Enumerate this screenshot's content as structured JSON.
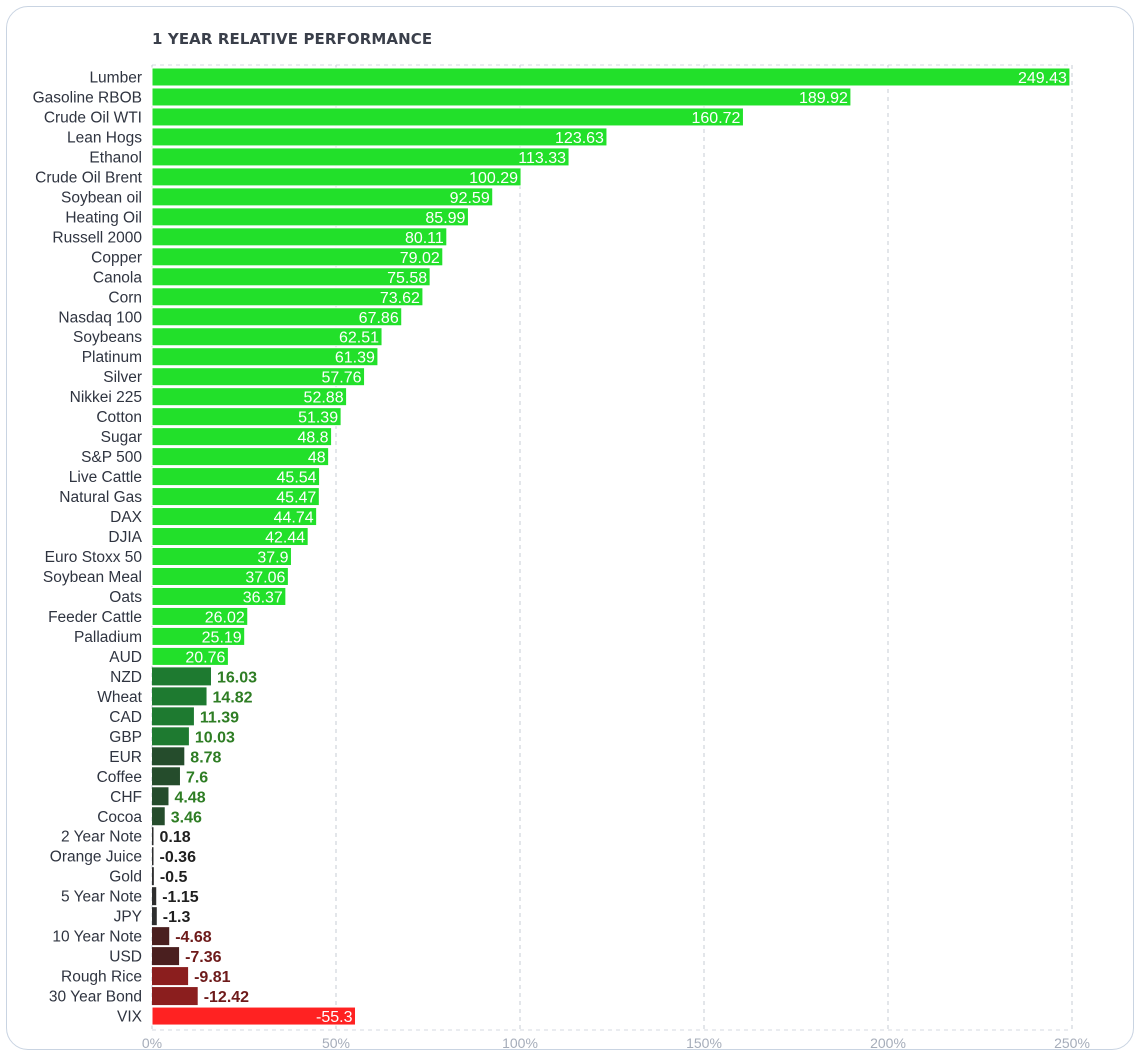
{
  "chart_data": {
    "type": "bar",
    "orientation": "horizontal",
    "title": "1 YEAR RELATIVE PERFORMANCE",
    "xlabel": "",
    "ylabel": "",
    "xlim": [
      0,
      250
    ],
    "x_ticks": [
      0,
      50,
      100,
      150,
      200,
      250
    ],
    "x_tick_labels": [
      "0%",
      "50%",
      "100%",
      "150%",
      "200%",
      "250%"
    ],
    "grid": "vertical dashed",
    "colors": {
      "bright_green": "#22e02a",
      "bright_green_border": "#ffffff",
      "dark_green_strong": "#1e7a30",
      "dark_green_weak": "#254c2c",
      "near_zero": "#2e2e2e",
      "dark_red_weak": "#4a1f1f",
      "dark_red_strong": "#8b1e1e",
      "bright_red": "#ff2222",
      "label_green": "#2e7d24",
      "label_dark": "#1f1f1f",
      "label_red": "#6e1a1a"
    },
    "categories": [
      "Lumber",
      "Gasoline RBOB",
      "Crude Oil WTI",
      "Lean Hogs",
      "Ethanol",
      "Crude Oil Brent",
      "Soybean oil",
      "Heating Oil",
      "Russell 2000",
      "Copper",
      "Canola",
      "Corn",
      "Nasdaq 100",
      "Soybeans",
      "Platinum",
      "Silver",
      "Nikkei 225",
      "Cotton",
      "Sugar",
      "S&P 500",
      "Live Cattle",
      "Natural Gas",
      "DAX",
      "DJIA",
      "Euro Stoxx 50",
      "Soybean Meal",
      "Oats",
      "Feeder Cattle",
      "Palladium",
      "AUD",
      "NZD",
      "Wheat",
      "CAD",
      "GBP",
      "EUR",
      "Coffee",
      "CHF",
      "Cocoa",
      "2 Year Note",
      "Orange Juice",
      "Gold",
      "5 Year Note",
      "JPY",
      "10 Year Note",
      "USD",
      "Rough Rice",
      "30 Year Bond",
      "VIX"
    ],
    "values": [
      249.43,
      189.92,
      160.72,
      123.63,
      113.33,
      100.29,
      92.59,
      85.99,
      80.11,
      79.02,
      75.58,
      73.62,
      67.86,
      62.51,
      61.39,
      57.76,
      52.88,
      51.39,
      48.8,
      48,
      45.54,
      45.47,
      44.74,
      42.44,
      37.9,
      37.06,
      36.37,
      26.02,
      25.19,
      20.76,
      16.03,
      14.82,
      11.39,
      10.03,
      8.78,
      7.6,
      4.48,
      3.46,
      0.18,
      -0.36,
      -0.5,
      -1.15,
      -1.3,
      -4.68,
      -7.36,
      -9.81,
      -12.42,
      -55.3
    ],
    "value_labels": [
      "249.43",
      "189.92",
      "160.72",
      "123.63",
      "113.33",
      "100.29",
      "92.59",
      "85.99",
      "80.11",
      "79.02",
      "75.58",
      "73.62",
      "67.86",
      "62.51",
      "61.39",
      "57.76",
      "52.88",
      "51.39",
      "48.8",
      "48",
      "45.54",
      "45.47",
      "44.74",
      "42.44",
      "37.9",
      "37.06",
      "36.37",
      "26.02",
      "25.19",
      "20.76",
      "16.03",
      "14.82",
      "11.39",
      "10.03",
      "8.78",
      "7.6",
      "4.48",
      "3.46",
      "0.18",
      "-0.36",
      "-0.5",
      "-1.15",
      "-1.3",
      "-4.68",
      "-7.36",
      "-9.81",
      "-12.42",
      "-55.3"
    ]
  }
}
